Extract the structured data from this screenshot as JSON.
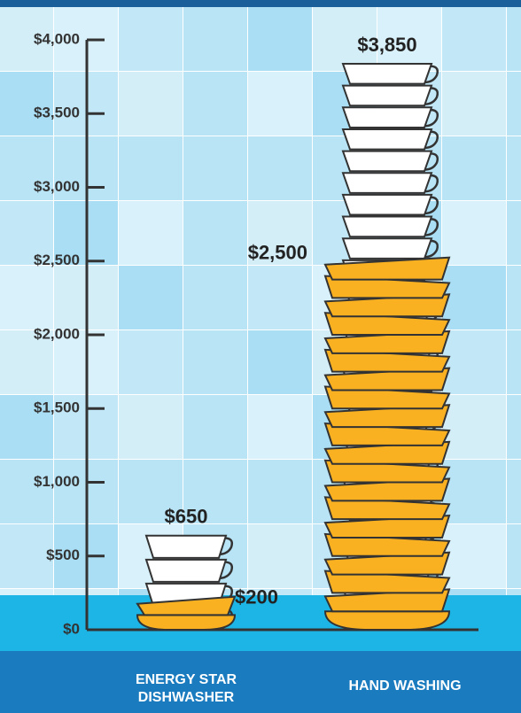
{
  "chart_data": {
    "type": "bar",
    "categories": [
      "ENERGY STAR\nDISHWASHER",
      "HAND WASHING"
    ],
    "series": [
      {
        "color": "#ffffff",
        "values": [
          650,
          3850
        ],
        "value_labels": [
          "$650",
          "$3,850"
        ]
      },
      {
        "color": "#f9b121",
        "values": [
          200,
          2500
        ],
        "value_labels": [
          "$200",
          "$2,500"
        ]
      }
    ],
    "ylim": [
      0,
      4000
    ],
    "yticks": [
      {
        "value": 0,
        "label": "$0"
      },
      {
        "value": 500,
        "label": "$500"
      },
      {
        "value": 1000,
        "label": "$1,000"
      },
      {
        "value": 1500,
        "label": "$1,500"
      },
      {
        "value": 2000,
        "label": "$2,000"
      },
      {
        "value": 2500,
        "label": "$2,500"
      },
      {
        "value": 3000,
        "label": "$3,000"
      },
      {
        "value": 3500,
        "label": "$3,500"
      },
      {
        "value": 4000,
        "label": "$4,000"
      }
    ]
  }
}
